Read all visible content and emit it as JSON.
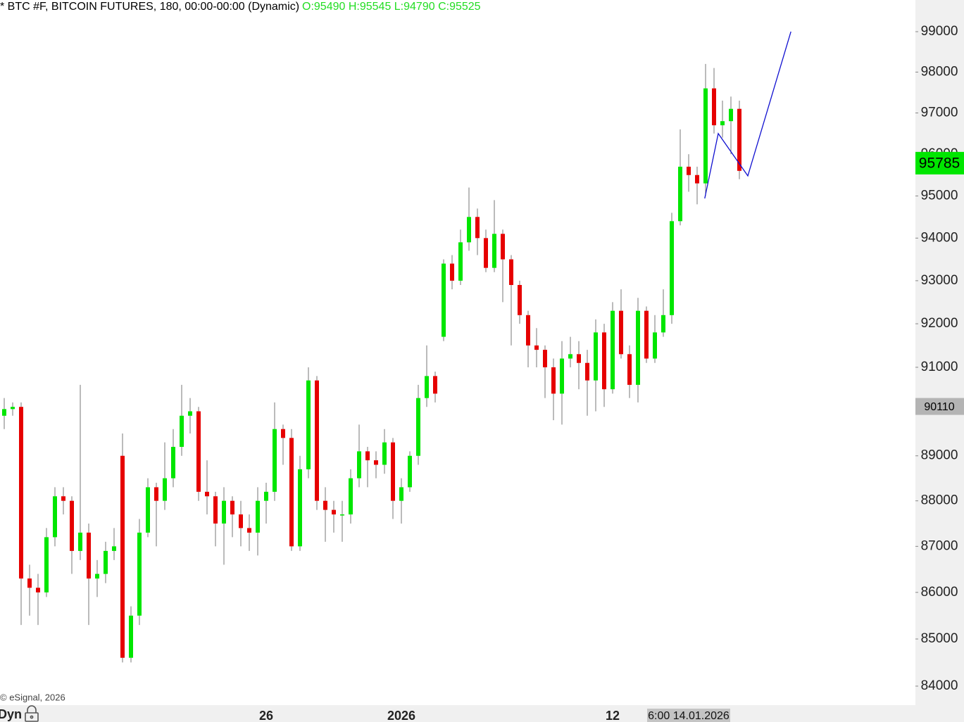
{
  "chart_data": {
    "type": "candlestick",
    "title": "* BTC #F, BITCOIN FUTURES, 180, 00:00-00:00 (Dynamic)",
    "ohlc_label": "O:95490 H:95545 L:94790 C:95525",
    "copyright": "© eSignal, 2026",
    "mode_label": "Dyn",
    "log_scale": true,
    "grid": false,
    "up_color": "#00e600",
    "down_color": "#e60000",
    "ylim": [
      83630,
      99790
    ],
    "yticks": [
      84000,
      85000,
      86000,
      87000,
      88000,
      89000,
      90000,
      91000,
      92000,
      93000,
      94000,
      95000,
      96000,
      97000,
      98000,
      99000
    ],
    "categories": [
      null,
      null,
      null,
      null,
      null,
      null,
      null,
      null,
      null,
      null,
      null,
      null,
      null,
      null,
      null,
      null,
      null,
      null,
      null,
      null,
      null,
      null,
      null,
      null,
      null,
      null,
      null,
      null,
      null,
      null,
      null,
      "26",
      null,
      null,
      null,
      null,
      null,
      null,
      null,
      null,
      null,
      null,
      null,
      null,
      null,
      null,
      null,
      "2026",
      null,
      null,
      null,
      null,
      null,
      null,
      null,
      null,
      null,
      null,
      null,
      null,
      null,
      null,
      null,
      null,
      null,
      null,
      null,
      null,
      null,
      null,
      null,
      null,
      "12",
      null,
      null,
      null,
      null,
      null,
      null,
      null,
      null,
      null,
      null,
      null,
      null,
      null,
      null,
      null
    ],
    "open": [
      89900,
      90050,
      90100,
      86300,
      86100,
      86000,
      87200,
      88100,
      88000,
      86900,
      87300,
      86300,
      86400,
      86900,
      89000,
      84600,
      85500,
      87300,
      88300,
      88000,
      88500,
      89200,
      89900,
      90000,
      88200,
      88100,
      87500,
      88000,
      87700,
      87400,
      87300,
      88000,
      88200,
      89600,
      89400,
      87000,
      88700,
      90700,
      88000,
      87800,
      87700,
      87700,
      88500,
      89100,
      88900,
      88800,
      89300,
      88000,
      88300,
      89000,
      90300,
      90800,
      91700,
      93400,
      93000,
      93900,
      94500,
      94000,
      93300,
      94100,
      93500,
      92900,
      92200,
      91500,
      91400,
      91000,
      90400,
      91200,
      91300,
      91100,
      90700,
      91800,
      90500,
      92300,
      91300,
      90600,
      92300,
      91200,
      91800,
      92200,
      94400,
      95700,
      95500,
      95300,
      97600,
      96700,
      96800,
      97100
    ],
    "high": [
      90300,
      90200,
      90200,
      86600,
      86400,
      87400,
      88300,
      88300,
      88100,
      90600,
      87500,
      86700,
      87100,
      87400,
      89500,
      85700,
      87600,
      88500,
      88400,
      89300,
      89600,
      90600,
      90300,
      90100,
      88900,
      88200,
      88300,
      88100,
      88000,
      87700,
      88300,
      88400,
      90200,
      89700,
      89600,
      89000,
      91000,
      90800,
      88300,
      88000,
      88000,
      88700,
      89700,
      89200,
      89100,
      89600,
      89400,
      88500,
      89100,
      90600,
      91500,
      90900,
      93500,
      93600,
      94200,
      95200,
      94700,
      94200,
      94900,
      94200,
      93600,
      93000,
      92300,
      91900,
      91500,
      91200,
      91600,
      91700,
      91600,
      91400,
      92100,
      92000,
      92500,
      92800,
      91500,
      92600,
      92400,
      92200,
      92800,
      94600,
      96600,
      96000,
      95700,
      98200,
      98100,
      97300,
      97400,
      97300
    ],
    "low": [
      89600,
      89900,
      85300,
      85500,
      85300,
      85900,
      87000,
      87700,
      86400,
      86700,
      85300,
      85900,
      86200,
      86700,
      84500,
      84500,
      85300,
      87200,
      87000,
      87800,
      88300,
      89000,
      89500,
      88000,
      87700,
      87000,
      86600,
      87200,
      87000,
      86900,
      86800,
      87500,
      88000,
      88800,
      86900,
      86900,
      88500,
      87800,
      87100,
      87300,
      87100,
      87500,
      88300,
      88300,
      88500,
      88600,
      87600,
      87500,
      88200,
      88800,
      90100,
      90200,
      91600,
      92800,
      92900,
      93700,
      93600,
      93200,
      93200,
      92500,
      91500,
      92000,
      91000,
      91000,
      90300,
      89800,
      89700,
      91000,
      90500,
      89900,
      90000,
      90100,
      90400,
      91200,
      90300,
      90200,
      91100,
      91100,
      91700,
      92000,
      94300,
      95100,
      94800,
      95000,
      96500,
      96400,
      96000,
      95400
    ],
    "close": [
      90050,
      90100,
      86300,
      86100,
      86000,
      87200,
      88100,
      88000,
      86900,
      87300,
      86300,
      86400,
      86900,
      87000,
      84600,
      85500,
      87300,
      88300,
      88000,
      88500,
      89200,
      89900,
      90000,
      88200,
      88100,
      87500,
      88000,
      87700,
      87400,
      87300,
      88000,
      88200,
      89600,
      89400,
      87000,
      88700,
      90700,
      88000,
      87800,
      87700,
      87700,
      88500,
      89100,
      88900,
      88800,
      89300,
      88000,
      88300,
      89000,
      90300,
      90800,
      90400,
      93400,
      93000,
      93900,
      94500,
      94000,
      93300,
      94100,
      93500,
      92900,
      92200,
      91500,
      91400,
      91000,
      90400,
      91200,
      91300,
      91100,
      90700,
      91800,
      90500,
      92300,
      91300,
      90600,
      92300,
      91200,
      91800,
      92200,
      94400,
      95700,
      95500,
      95300,
      97600,
      96700,
      96800,
      97100,
      95600
    ],
    "trendline": {
      "color": "#1010d0",
      "x": [
        82.9,
        84.5,
        88,
        93.1
      ],
      "y": [
        94940,
        96500,
        95480,
        99000
      ]
    },
    "last_price": {
      "value": 95785,
      "color": "#00e600"
    },
    "marker_price": {
      "value": 90110,
      "color": "#b4b4b4"
    },
    "cursor": {
      "x": 81,
      "label": "6:00 14.01.2026"
    }
  }
}
